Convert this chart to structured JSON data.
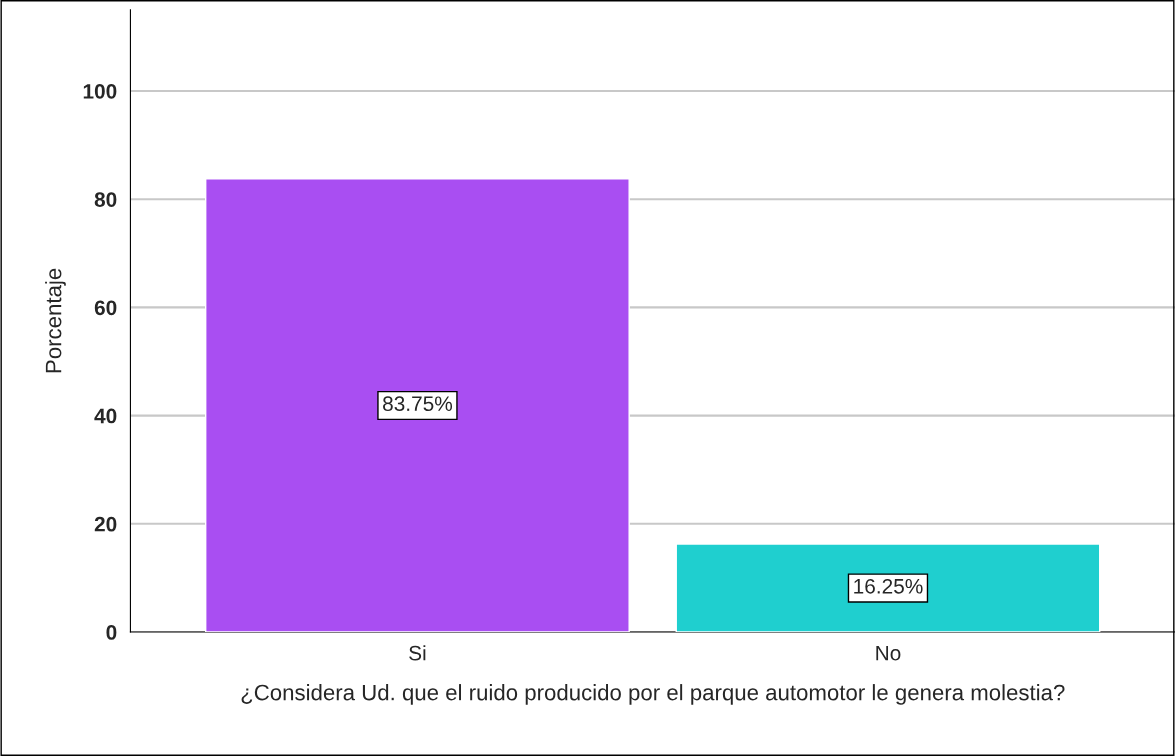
{
  "chart_data": {
    "type": "bar",
    "xlabel": "¿Considera Ud. que el ruido producido por el parque automotor le genera molestia?",
    "ylabel": "Porcentaje",
    "categories": [
      "Si",
      "No"
    ],
    "values": [
      83.75,
      16.25
    ],
    "colors": [
      "#a94ef2",
      "#1fcfcf"
    ],
    "value_labels": [
      "83.75%",
      "16.25%"
    ],
    "ylim": [
      0,
      115
    ],
    "yticks": [
      0,
      20,
      40,
      60,
      80,
      100
    ],
    "grid": "y",
    "legend": false
  }
}
